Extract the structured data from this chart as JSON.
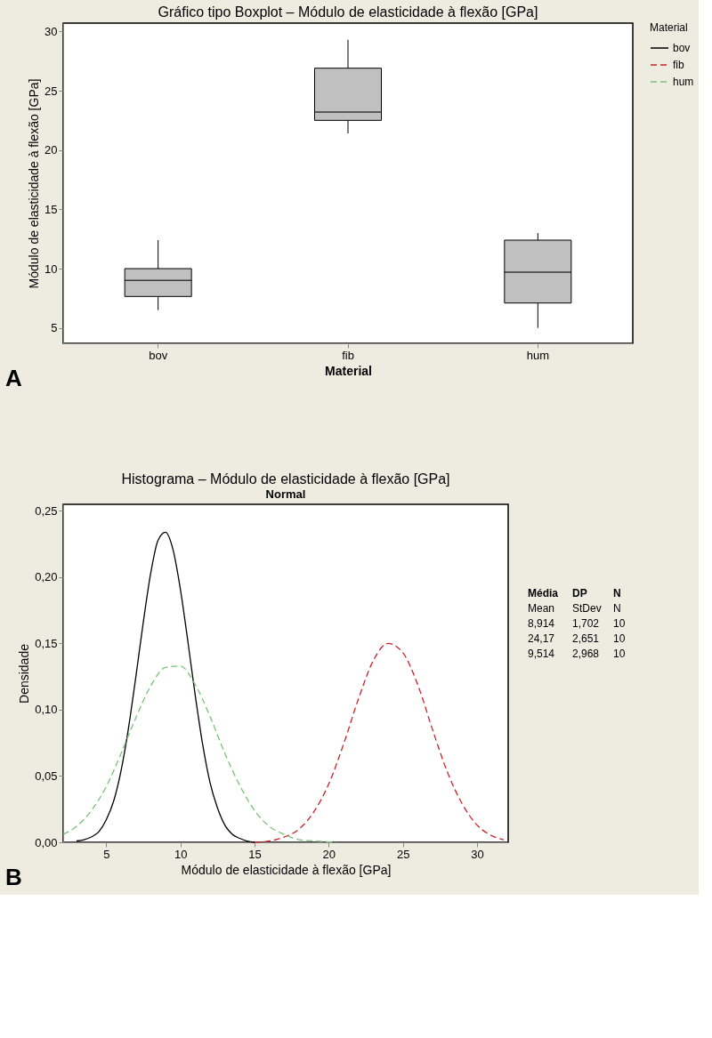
{
  "chart_data": [
    {
      "type": "box",
      "title": "Gráfico tipo Boxplot – Módulo de elasticidade à flexão [GPa]",
      "xlabel": "Material",
      "ylabel": "Módulo de elasticidade à flexão [GPa]",
      "categories": [
        "bov",
        "fib",
        "hum"
      ],
      "color": "#c0c0c0",
      "boxes": [
        {
          "low": 6.5,
          "q1": 7.65,
          "median": 9.0,
          "q3": 10.0,
          "high": 12.4
        },
        {
          "low": 21.4,
          "q1": 22.5,
          "median": 23.2,
          "q3": 26.9,
          "high": 29.3
        },
        {
          "low": 5.0,
          "q1": 7.1,
          "median": 9.7,
          "q3": 12.4,
          "high": 13.0
        }
      ],
      "ylim": [
        3.7,
        30.7
      ],
      "yticks": [
        5,
        10,
        15,
        20,
        25,
        30
      ],
      "annotations": [
        "A"
      ]
    },
    {
      "type": "line",
      "title": "Histograma – Módulo de elasticidade à flexão [GPa]",
      "subtitle": "Normal",
      "xlabel": "Módulo de elasticidade à flexão [GPa]",
      "ylabel": "Densidade",
      "legend_title": "Material",
      "legend": "right",
      "series": [
        {
          "name": "bov",
          "color": "#000000",
          "line_style": "solid",
          "x": [
            3,
            3.5,
            4,
            4.5,
            5,
            5.5,
            6,
            6.5,
            7,
            7.5,
            8,
            8.5,
            9,
            9.5,
            10,
            10.5,
            11,
            11.5,
            12,
            12.5,
            13,
            13.5,
            14,
            14.5,
            15
          ],
          "values": [
            0.001,
            0.002,
            0.004,
            0.008,
            0.017,
            0.031,
            0.054,
            0.086,
            0.125,
            0.166,
            0.203,
            0.228,
            0.234,
            0.221,
            0.191,
            0.152,
            0.111,
            0.074,
            0.045,
            0.026,
            0.013,
            0.006,
            0.003,
            0.001,
            0.0
          ]
        },
        {
          "name": "fib",
          "color": "#cc2229",
          "line_style": "dashed",
          "x": [
            15,
            16,
            17,
            18,
            19,
            20,
            21,
            22,
            23,
            24,
            25,
            26,
            27,
            28,
            29,
            30,
            31,
            31.8
          ],
          "values": [
            0.0,
            0.001,
            0.004,
            0.01,
            0.023,
            0.044,
            0.074,
            0.108,
            0.137,
            0.15,
            0.143,
            0.119,
            0.085,
            0.053,
            0.029,
            0.013,
            0.005,
            0.002
          ]
        },
        {
          "name": "hum",
          "color": "#77c277",
          "line_style": "dashed",
          "x": [
            2.1,
            3,
            4,
            5,
            6,
            7,
            8,
            9,
            10,
            11,
            12,
            13,
            14,
            15,
            16,
            17,
            18,
            19,
            20.5
          ],
          "values": [
            0.006,
            0.012,
            0.024,
            0.042,
            0.067,
            0.094,
            0.118,
            0.132,
            0.133,
            0.119,
            0.095,
            0.067,
            0.043,
            0.024,
            0.012,
            0.006,
            0.002,
            0.001,
            0.0
          ]
        }
      ],
      "xlim": [
        2.1,
        32.1
      ],
      "xticks": [
        5,
        10,
        15,
        20,
        25,
        30
      ],
      "ylim": [
        0,
        0.255
      ],
      "yticks": [
        {
          "value": 0,
          "label": "0,00"
        },
        {
          "value": 0.05,
          "label": "0,05"
        },
        {
          "value": 0.1,
          "label": "0,10"
        },
        {
          "value": 0.15,
          "label": "0,15"
        },
        {
          "value": 0.2,
          "label": "0,20"
        },
        {
          "value": 0.25,
          "label": "0,25"
        }
      ],
      "annotations": [
        "B",
        "Média DP N",
        "Mean StDev N",
        "8,914 1,702 10",
        "24,17 2,651 10",
        "9,514 2,968 10"
      ]
    }
  ]
}
